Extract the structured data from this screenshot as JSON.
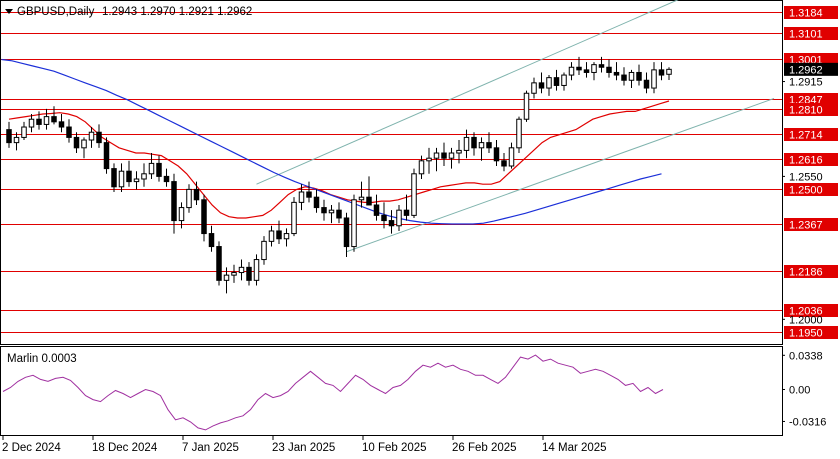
{
  "header": {
    "symbol": "GBPUSD,Daily",
    "ohlc": "1.2943 1.2970 1.2921 1.2962"
  },
  "indicator": {
    "label": "Marlin 0.0003",
    "axis_labels": [
      "0.0338",
      "0.00",
      "-0.0316"
    ]
  },
  "price_axis": {
    "grid_labels": [
      "1.2915",
      "1.2550",
      "1.2000"
    ],
    "current_price": "1.2962"
  },
  "time_axis": {
    "labels": [
      "2 Dec 2024",
      "18 Dec 2024",
      "7 Jan 2025",
      "23 Jan 2025",
      "10 Feb 2025",
      "26 Feb 2025",
      "14 Mar 2025"
    ]
  },
  "levels": [
    {
      "label": "1.3184",
      "value": 1.3184
    },
    {
      "label": "1.3101",
      "value": 1.3101
    },
    {
      "label": "1.3001",
      "value": 1.3001
    },
    {
      "label": "1.2847",
      "value": 1.2847
    },
    {
      "label": "1.2810",
      "value": 1.281
    },
    {
      "label": "1.2714",
      "value": 1.2714
    },
    {
      "label": "1.2616",
      "value": 1.2616
    },
    {
      "label": "1.2500",
      "value": 1.25
    },
    {
      "label": "1.2367",
      "value": 1.2367
    },
    {
      "label": "1.2186",
      "value": 1.2186
    },
    {
      "label": "1.2036",
      "value": 1.2036
    },
    {
      "label": "1.1950",
      "value": 1.195
    }
  ],
  "colors": {
    "level_line": "#e00000",
    "level_badge": "#e00000",
    "candle": "#000000",
    "fast_ma": "#e00000",
    "slow_ma": "#1b2fd8",
    "channel": "#7fb3ad",
    "oscillator": "#a030a0",
    "current_price_badge": "#000000"
  },
  "chart_data": {
    "type": "candlestick",
    "symbol": "GBPUSD",
    "timeframe": "Daily",
    "ylim": [
      1.1905,
      1.3225
    ],
    "candles": [
      [
        1.273,
        1.276,
        1.266,
        1.268
      ],
      [
        1.268,
        1.272,
        1.265,
        1.27
      ],
      [
        1.27,
        1.276,
        1.269,
        1.274
      ],
      [
        1.274,
        1.279,
        1.272,
        1.277
      ],
      [
        1.277,
        1.28,
        1.273,
        1.275
      ],
      [
        1.275,
        1.281,
        1.273,
        1.278
      ],
      [
        1.278,
        1.282,
        1.275,
        1.276
      ],
      [
        1.276,
        1.279,
        1.272,
        1.274
      ],
      [
        1.274,
        1.277,
        1.268,
        1.27
      ],
      [
        1.27,
        1.272,
        1.264,
        1.266
      ],
      [
        1.266,
        1.27,
        1.262,
        1.269
      ],
      [
        1.269,
        1.274,
        1.266,
        1.272
      ],
      [
        1.272,
        1.275,
        1.266,
        1.268
      ],
      [
        1.268,
        1.27,
        1.256,
        1.258
      ],
      [
        1.258,
        1.26,
        1.249,
        1.251
      ],
      [
        1.251,
        1.26,
        1.249,
        1.257
      ],
      [
        1.257,
        1.261,
        1.251,
        1.253
      ],
      [
        1.253,
        1.257,
        1.25,
        1.254
      ],
      [
        1.254,
        1.26,
        1.251,
        1.256
      ],
      [
        1.256,
        1.264,
        1.254,
        1.26
      ],
      [
        1.26,
        1.263,
        1.253,
        1.255
      ],
      [
        1.255,
        1.258,
        1.251,
        1.253
      ],
      [
        1.253,
        1.256,
        1.233,
        1.238
      ],
      [
        1.238,
        1.245,
        1.235,
        1.243
      ],
      [
        1.243,
        1.252,
        1.241,
        1.25
      ],
      [
        1.25,
        1.253,
        1.244,
        1.246
      ],
      [
        1.246,
        1.248,
        1.23,
        1.233
      ],
      [
        1.233,
        1.236,
        1.226,
        1.228
      ],
      [
        1.228,
        1.23,
        1.213,
        1.215
      ],
      [
        1.215,
        1.22,
        1.21,
        1.217
      ],
      [
        1.217,
        1.221,
        1.214,
        1.218
      ],
      [
        1.218,
        1.223,
        1.215,
        1.22
      ],
      [
        1.22,
        1.222,
        1.213,
        1.215
      ],
      [
        1.215,
        1.225,
        1.213,
        1.223
      ],
      [
        1.223,
        1.232,
        1.221,
        1.23
      ],
      [
        1.23,
        1.236,
        1.228,
        1.234
      ],
      [
        1.234,
        1.238,
        1.229,
        1.231
      ],
      [
        1.231,
        1.235,
        1.228,
        1.233
      ],
      [
        1.233,
        1.247,
        1.232,
        1.245
      ],
      [
        1.245,
        1.252,
        1.242,
        1.249
      ],
      [
        1.249,
        1.253,
        1.245,
        1.247
      ],
      [
        1.247,
        1.25,
        1.241,
        1.243
      ],
      [
        1.243,
        1.246,
        1.238,
        1.241
      ],
      [
        1.241,
        1.244,
        1.237,
        1.242
      ],
      [
        1.242,
        1.245,
        1.237,
        1.239
      ],
      [
        1.239,
        1.241,
        1.224,
        1.228
      ],
      [
        1.228,
        1.248,
        1.226,
        1.246
      ],
      [
        1.246,
        1.253,
        1.243,
        1.247
      ],
      [
        1.247,
        1.255,
        1.244,
        1.244
      ],
      [
        1.244,
        1.248,
        1.238,
        1.24
      ],
      [
        1.24,
        1.245,
        1.235,
        1.238
      ],
      [
        1.238,
        1.242,
        1.233,
        1.236
      ],
      [
        1.236,
        1.244,
        1.234,
        1.242
      ],
      [
        1.242,
        1.248,
        1.238,
        1.24
      ],
      [
        1.24,
        1.258,
        1.239,
        1.256
      ],
      [
        1.256,
        1.263,
        1.254,
        1.261
      ],
      [
        1.261,
        1.266,
        1.256,
        1.262
      ],
      [
        1.262,
        1.266,
        1.257,
        1.264
      ],
      [
        1.264,
        1.268,
        1.259,
        1.262
      ],
      [
        1.262,
        1.266,
        1.258,
        1.264
      ],
      [
        1.264,
        1.269,
        1.26,
        1.265
      ],
      [
        1.265,
        1.273,
        1.262,
        1.27
      ],
      [
        1.27,
        1.272,
        1.263,
        1.266
      ],
      [
        1.266,
        1.27,
        1.261,
        1.268
      ],
      [
        1.268,
        1.272,
        1.264,
        1.266
      ],
      [
        1.266,
        1.269,
        1.259,
        1.261
      ],
      [
        1.261,
        1.264,
        1.257,
        1.259
      ],
      [
        1.259,
        1.268,
        1.258,
        1.266
      ],
      [
        1.266,
        1.278,
        1.264,
        1.277
      ],
      [
        1.277,
        1.288,
        1.276,
        1.287
      ],
      [
        1.287,
        1.293,
        1.285,
        1.291
      ],
      [
        1.291,
        1.295,
        1.287,
        1.289
      ],
      [
        1.289,
        1.294,
        1.286,
        1.293
      ],
      [
        1.293,
        1.296,
        1.288,
        1.29
      ],
      [
        1.29,
        1.295,
        1.288,
        1.294
      ],
      [
        1.294,
        1.299,
        1.292,
        1.297
      ],
      [
        1.297,
        1.301,
        1.294,
        1.296
      ],
      [
        1.296,
        1.299,
        1.293,
        1.295
      ],
      [
        1.295,
        1.299,
        1.292,
        1.298
      ],
      [
        1.298,
        1.301,
        1.295,
        1.297
      ],
      [
        1.297,
        1.3,
        1.293,
        1.295
      ],
      [
        1.295,
        1.299,
        1.292,
        1.294
      ],
      [
        1.294,
        1.297,
        1.29,
        1.292
      ],
      [
        1.292,
        1.296,
        1.289,
        1.295
      ],
      [
        1.295,
        1.298,
        1.29,
        1.292
      ],
      [
        1.292,
        1.295,
        1.287,
        1.289
      ],
      [
        1.289,
        1.299,
        1.287,
        1.296
      ],
      [
        1.296,
        1.299,
        1.292,
        1.294
      ],
      [
        1.2943,
        1.297,
        1.2921,
        1.2962
      ]
    ],
    "fast_ma": [
      1.277,
      1.2775,
      1.278,
      1.2785,
      1.279,
      1.2792,
      1.2795,
      1.279,
      1.278,
      1.276,
      1.273,
      1.27,
      1.268,
      1.266,
      1.265,
      1.264,
      1.264,
      1.2635,
      1.263,
      1.261,
      1.259,
      1.256,
      1.252,
      1.248,
      1.244,
      1.241,
      1.2395,
      1.239,
      1.239,
      1.2395,
      1.24,
      1.242,
      1.245,
      1.248,
      1.25,
      1.251,
      1.2505,
      1.2495,
      1.248,
      1.247,
      1.246,
      1.2455,
      1.245,
      1.245,
      1.2455,
      1.2455,
      1.246,
      1.247,
      1.248,
      1.249,
      1.25,
      1.251,
      1.2515,
      1.252,
      1.2525,
      1.2525,
      1.252,
      1.252,
      1.253,
      1.256,
      1.259,
      1.262,
      1.265,
      1.268,
      1.27,
      1.271,
      1.272,
      1.273,
      1.275,
      1.277,
      1.278,
      1.279,
      1.2795,
      1.28,
      1.28,
      1.281,
      1.282,
      1.283,
      1.284
    ],
    "slow_ma": [
      1.3,
      1.2995,
      1.2985,
      1.2975,
      1.2965,
      1.2955,
      1.294,
      1.2925,
      1.291,
      1.2895,
      1.288,
      1.2862,
      1.2845,
      1.2825,
      1.2805,
      1.2785,
      1.2765,
      1.2745,
      1.2725,
      1.2705,
      1.2685,
      1.2665,
      1.2645,
      1.2625,
      1.2605,
      1.2585,
      1.2565,
      1.2547,
      1.253,
      1.2515,
      1.25,
      1.2485,
      1.247,
      1.2455,
      1.244,
      1.2425,
      1.241,
      1.2398,
      1.2388,
      1.238,
      1.2374,
      1.237,
      1.2368,
      1.2367,
      1.2367,
      1.2367,
      1.237,
      1.2378,
      1.2388,
      1.2398,
      1.2408,
      1.242,
      1.2432,
      1.2444,
      1.2456,
      1.2468,
      1.248,
      1.2492,
      1.2504,
      1.2516,
      1.2528,
      1.254,
      1.255,
      1.256
    ],
    "channel_lower": [
      [
        1.226,
        1.285
      ]
    ],
    "channel_upper": [
      [
        1.252,
        1.324
      ]
    ],
    "oscillator": {
      "name": "Marlin",
      "value": 0.0003,
      "ylim": [
        -0.045,
        0.042
      ],
      "values": [
        -0.002,
        0.002,
        0.008,
        0.012,
        0.014,
        0.01,
        0.008,
        0.011,
        0.012,
        0.009,
        0.002,
        -0.006,
        -0.01,
        -0.012,
        -0.006,
        -0.001,
        -0.004,
        -0.008,
        -0.004,
        0.0,
        -0.002,
        -0.006,
        -0.02,
        -0.03,
        -0.028,
        -0.032,
        -0.038,
        -0.04,
        -0.036,
        -0.033,
        -0.031,
        -0.028,
        -0.026,
        -0.02,
        -0.01,
        -0.004,
        -0.008,
        -0.006,
        -0.002,
        0.006,
        0.012,
        0.018,
        0.012,
        0.006,
        0.004,
        -0.002,
        0.006,
        0.014,
        0.01,
        0.004,
        0.0,
        -0.004,
        0.002,
        0.004,
        0.01,
        0.018,
        0.024,
        0.022,
        0.026,
        0.022,
        0.024,
        0.02,
        0.018,
        0.014,
        0.014,
        0.01,
        0.006,
        0.012,
        0.022,
        0.032,
        0.03,
        0.034,
        0.028,
        0.03,
        0.026,
        0.024,
        0.022,
        0.016,
        0.018,
        0.02,
        0.018,
        0.014,
        0.01,
        0.004,
        0.006,
        -0.002,
        0.002,
        -0.004,
        0.0
      ]
    }
  }
}
